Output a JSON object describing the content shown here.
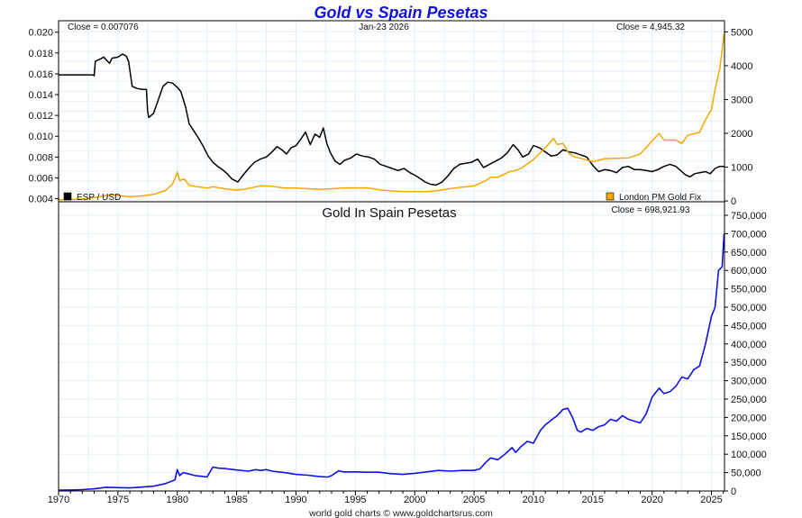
{
  "page": {
    "title": "Gold vs Spain Pesetas",
    "credit": "world gold charts © www.goldchartsrus.com",
    "date": "Jan-23  2026"
  },
  "chart_data": [
    {
      "type": "line",
      "panel": "top",
      "title": "Gold vs Spain Pesetas",
      "xlabel": "",
      "x_range": [
        1970,
        2026.1
      ],
      "left_axis": {
        "label": "ESP / USD",
        "range": [
          0.0037,
          0.0211
        ],
        "ticks": [
          0.004,
          0.006,
          0.008,
          0.01,
          0.012,
          0.014,
          0.016,
          0.018,
          0.02
        ],
        "tick_labels": [
          "0.004",
          "0.006",
          "0.008",
          "0.010",
          "0.012",
          "0.014",
          "0.016",
          "0.018",
          "0.020"
        ]
      },
      "right_axis": {
        "label": "London PM Gold Fix",
        "range": [
          -25,
          5330
        ],
        "ticks": [
          0,
          1000,
          2000,
          3000,
          4000,
          5000
        ],
        "tick_labels": [
          "0",
          "1000",
          "2000",
          "3000",
          "4000",
          "5000"
        ]
      },
      "annotations": {
        "left_close": "Close = 0.007076",
        "date": "Jan-23  2026",
        "right_close": "Close = 4,945.32"
      },
      "legend": [
        {
          "name": "ESP / USD",
          "color": "#000000",
          "placement": "bottom-left"
        },
        {
          "name": "London PM Gold Fix",
          "color": "#f5a800",
          "placement": "bottom-right"
        }
      ],
      "grid": true,
      "series": [
        {
          "name": "ESP / USD",
          "axis": "left",
          "color": "#000000",
          "x": [
            1970,
            1972.9,
            1973.0,
            1973.1,
            1973.5,
            1973.8,
            1974.3,
            1974.5,
            1975.0,
            1975.4,
            1975.7,
            1975.9,
            1976.2,
            1976.6,
            1977.0,
            1977.4,
            1977.5,
            1977.6,
            1978.0,
            1978.4,
            1978.8,
            1979.2,
            1979.6,
            1980.0,
            1980.3,
            1980.7,
            1981.0,
            1981.4,
            1981.8,
            1982.2,
            1982.6,
            1983.0,
            1983.4,
            1983.8,
            1984.2,
            1984.6,
            1985.1,
            1985.5,
            1986.0,
            1986.5,
            1987.0,
            1987.5,
            1987.9,
            1988.4,
            1988.8,
            1989.2,
            1989.6,
            1990.0,
            1990.4,
            1990.8,
            1991.2,
            1991.6,
            1992.0,
            1992.3,
            1992.6,
            1992.9,
            1993.3,
            1993.7,
            1994.1,
            1994.6,
            1995.1,
            1995.6,
            1996.1,
            1996.6,
            1997.1,
            1997.6,
            1998.1,
            1998.6,
            1999.1,
            1999.6,
            2000.1,
            2000.5,
            2000.9,
            2001.3,
            2001.8,
            2002.3,
            2002.8,
            2003.3,
            2003.8,
            2004.3,
            2004.8,
            2005.3,
            2005.8,
            2006.3,
            2006.8,
            2007.3,
            2007.8,
            2008.3,
            2008.7,
            2009.1,
            2009.6,
            2010.0,
            2010.5,
            2011.0,
            2011.5,
            2012.0,
            2012.5,
            2013.0,
            2013.5,
            2014.0,
            2014.5,
            2015.0,
            2015.5,
            2016.0,
            2016.5,
            2017.0,
            2017.5,
            2018.0,
            2018.5,
            2019.0,
            2019.5,
            2020.0,
            2020.5,
            2021.0,
            2021.5,
            2022.0,
            2022.4,
            2022.8,
            2023.2,
            2023.6,
            2024.0,
            2024.5,
            2024.9,
            2025.3,
            2025.7,
            2026.06
          ],
          "values": [
            0.0159,
            0.0159,
            0.0158,
            0.0172,
            0.0174,
            0.0176,
            0.017,
            0.0175,
            0.0176,
            0.0179,
            0.0177,
            0.0172,
            0.0148,
            0.0146,
            0.0145,
            0.0145,
            0.0124,
            0.0118,
            0.0122,
            0.0135,
            0.0148,
            0.0152,
            0.0151,
            0.0147,
            0.0143,
            0.0128,
            0.0112,
            0.0105,
            0.0098,
            0.009,
            0.0081,
            0.0075,
            0.0071,
            0.0068,
            0.0064,
            0.0059,
            0.0056,
            0.0062,
            0.0069,
            0.0075,
            0.0078,
            0.008,
            0.0084,
            0.009,
            0.0087,
            0.0083,
            0.0089,
            0.0091,
            0.0097,
            0.0104,
            0.0092,
            0.0102,
            0.0099,
            0.0108,
            0.0093,
            0.0084,
            0.0076,
            0.0073,
            0.0077,
            0.0079,
            0.0083,
            0.0081,
            0.008,
            0.0078,
            0.0073,
            0.0071,
            0.0069,
            0.0067,
            0.0069,
            0.0065,
            0.0062,
            0.0059,
            0.0056,
            0.0054,
            0.0053,
            0.0056,
            0.0062,
            0.0069,
            0.0073,
            0.0074,
            0.0075,
            0.0078,
            0.007,
            0.0073,
            0.0076,
            0.0079,
            0.0084,
            0.0092,
            0.0087,
            0.008,
            0.0083,
            0.0091,
            0.0089,
            0.0085,
            0.0081,
            0.0082,
            0.0087,
            0.0085,
            0.0084,
            0.0082,
            0.008,
            0.0072,
            0.0066,
            0.0068,
            0.0067,
            0.0065,
            0.007,
            0.0071,
            0.0068,
            0.0068,
            0.0067,
            0.0066,
            0.0068,
            0.0071,
            0.0073,
            0.0071,
            0.0067,
            0.0063,
            0.0061,
            0.0064,
            0.0065,
            0.0066,
            0.0064,
            0.0069,
            0.0071,
            0.0071
          ]
        },
        {
          "name": "London PM Gold Fix",
          "axis": "right",
          "color": "#f5a800",
          "x": [
            1970,
            1971,
            1972,
            1973,
            1974,
            1974.5,
            1975,
            1976,
            1977,
            1978,
            1979,
            1979.6,
            1980.0,
            1980.2,
            1980.6,
            1981.0,
            1981.5,
            1982.5,
            1983.0,
            1984.0,
            1985.0,
            1986.0,
            1987.0,
            1988.0,
            1989.0,
            1990.0,
            1991.0,
            1992.0,
            1993.0,
            1994.0,
            1995.0,
            1996.0,
            1997.0,
            1998.0,
            1999.0,
            2000.0,
            2001.0,
            2002.0,
            2003.0,
            2004.0,
            2005.0,
            2006.0,
            2006.4,
            2007.0,
            2008.0,
            2008.5,
            2009.0,
            2010.0,
            2011.0,
            2011.7,
            2012.0,
            2012.5,
            2013.0,
            2013.5,
            2014.0,
            2015.0,
            2016.0,
            2017.0,
            2018.0,
            2019.0,
            2020.0,
            2020.6,
            2021.0,
            2022.0,
            2022.5,
            2023.0,
            2024.0,
            2024.5,
            2025.0,
            2025.3,
            2025.7,
            2026.06
          ],
          "values": [
            36,
            41,
            58,
            97,
            154,
            180,
            161,
            125,
            148,
            193,
            307,
            500,
            850,
            600,
            650,
            460,
            430,
            380,
            420,
            360,
            320,
            368,
            446,
            437,
            381,
            383,
            362,
            344,
            360,
            384,
            384,
            388,
            331,
            294,
            279,
            279,
            271,
            310,
            363,
            409,
            445,
            604,
            700,
            700,
            870,
            900,
            972,
            1225,
            1570,
            1850,
            1670,
            1700,
            1400,
            1300,
            1260,
            1160,
            1250,
            1260,
            1270,
            1390,
            1770,
            2000,
            1800,
            1800,
            1700,
            1940,
            2030,
            2400,
            2700,
            3300,
            3900,
            4945
          ]
        }
      ]
    },
    {
      "type": "line",
      "panel": "bottom",
      "title": "Gold In Spain Pesetas",
      "xlabel": "",
      "x_range": [
        1970,
        2026.1
      ],
      "x_ticks": [
        1970,
        1975,
        1980,
        1985,
        1990,
        1995,
        2000,
        2005,
        2010,
        2015,
        2020,
        2025
      ],
      "x_tick_labels": [
        "1970",
        "1975",
        "1980",
        "1985",
        "1990",
        "1995",
        "2000",
        "2005",
        "2010",
        "2015",
        "2020",
        "2025"
      ],
      "right_axis": {
        "range": [
          0,
          750000
        ],
        "ticks": [
          0,
          50000,
          100000,
          150000,
          200000,
          250000,
          300000,
          350000,
          400000,
          450000,
          500000,
          550000,
          600000,
          650000,
          700000,
          750000
        ],
        "tick_labels": [
          "0",
          "50,000",
          "100,000",
          "150,000",
          "200,000",
          "250,000",
          "300,000",
          "350,000",
          "400,000",
          "450,000",
          "500,000",
          "550,000",
          "600,000",
          "650,000",
          "700,000",
          "750,000"
        ]
      },
      "annotations": {
        "right_close": "Close = 698,921.93"
      },
      "grid": true,
      "series": [
        {
          "name": "Gold In Spain Pesetas",
          "axis": "right",
          "color": "#1010e8",
          "x": [
            1970,
            1971,
            1972,
            1973,
            1974,
            1975,
            1976,
            1977,
            1978,
            1979,
            1979.8,
            1980.0,
            1980.2,
            1980.5,
            1981.0,
            1981.5,
            1982.0,
            1982.5,
            1983.0,
            1983.5,
            1984.0,
            1985.0,
            1986.0,
            1986.6,
            1987.0,
            1987.5,
            1988.0,
            1989.0,
            1990.0,
            1991.0,
            1992.0,
            1992.7,
            1993.0,
            1993.6,
            1994.0,
            1995.0,
            1996.0,
            1997.0,
            1998.0,
            1999.0,
            2000.0,
            2001.0,
            2002.0,
            2003.0,
            2004.0,
            2005.0,
            2005.5,
            2006.0,
            2006.4,
            2007.0,
            2007.6,
            2008.2,
            2008.5,
            2009.0,
            2009.5,
            2010.0,
            2010.6,
            2011.0,
            2011.6,
            2012.0,
            2012.5,
            2012.9,
            2013.3,
            2013.7,
            2014.0,
            2014.5,
            2015.0,
            2015.5,
            2016.0,
            2016.5,
            2017.0,
            2017.5,
            2018.0,
            2018.5,
            2019.0,
            2019.5,
            2020.0,
            2020.6,
            2021.0,
            2021.5,
            2022.0,
            2022.5,
            2023.0,
            2023.5,
            2024.0,
            2024.5,
            2025.0,
            2025.3,
            2025.6,
            2025.9,
            2026.06
          ],
          "values": [
            2300,
            2600,
            3700,
            6000,
            10000,
            9000,
            8300,
            10500,
            13000,
            20000,
            30000,
            58000,
            42000,
            50000,
            46000,
            42000,
            40000,
            38000,
            65000,
            62000,
            61000,
            57000,
            54000,
            58000,
            56000,
            58000,
            54000,
            50000,
            45000,
            43000,
            39000,
            38000,
            42000,
            55000,
            52000,
            52000,
            51000,
            51000,
            47000,
            45000,
            48000,
            52000,
            56000,
            54000,
            56000,
            56000,
            60000,
            78000,
            90000,
            85000,
            100000,
            118000,
            105000,
            122000,
            135000,
            130000,
            165000,
            180000,
            195000,
            205000,
            222000,
            225000,
            200000,
            165000,
            160000,
            170000,
            165000,
            175000,
            180000,
            195000,
            190000,
            205000,
            195000,
            190000,
            185000,
            210000,
            255000,
            280000,
            265000,
            270000,
            285000,
            310000,
            305000,
            330000,
            340000,
            400000,
            475000,
            500000,
            600000,
            610000,
            699000
          ]
        }
      ]
    }
  ]
}
